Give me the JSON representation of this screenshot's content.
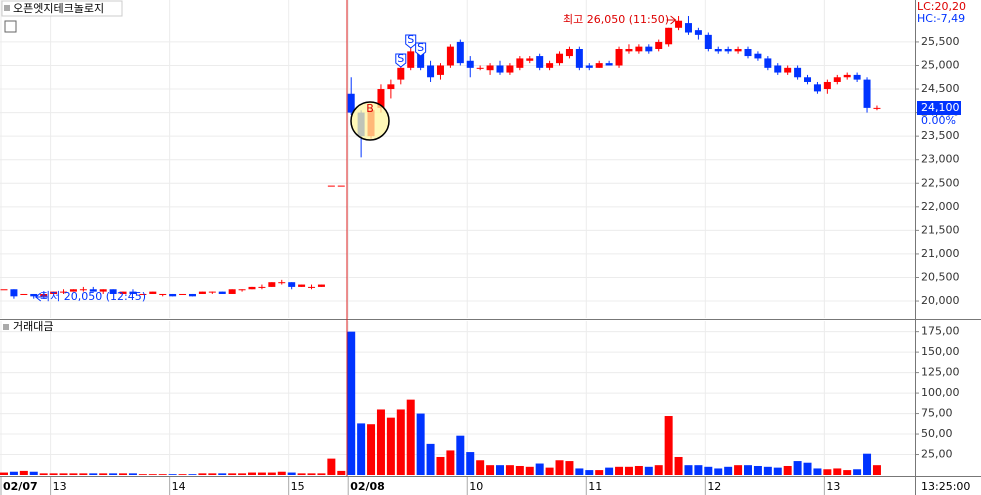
{
  "chart_data": [
    {
      "type": "candlestick",
      "title": "오픈엣지테크놀로지",
      "up_color": "#ff0000",
      "down_color": "#0033ff",
      "open": [
        20250,
        20250,
        20150,
        20150,
        20100,
        20150,
        20200,
        20200,
        20250,
        20250,
        20200,
        20250,
        20150,
        20200,
        20150,
        20150,
        20150,
        20150,
        20150,
        20150,
        20150,
        20200,
        20200,
        20150,
        20250,
        20250,
        20300,
        20300,
        20400,
        20400,
        20300,
        20300,
        20300,
        22450,
        22450,
        24400,
        24000,
        23500,
        24100,
        24500,
        24700,
        24950,
        25300,
        25000,
        24800,
        25000,
        25500,
        25100,
        24950,
        24900,
        25000,
        24850,
        24950,
        25100,
        25200,
        24950,
        25050,
        25200,
        25350,
        25000,
        24950,
        25050,
        25000,
        25300,
        25300,
        25400,
        25350,
        25450,
        25800,
        25900,
        25750,
        25650,
        25350,
        25350,
        25300,
        25350,
        25250,
        25150,
        25000,
        24850,
        24950,
        24750,
        24600,
        24500,
        24650,
        24750,
        24800,
        24700,
        24100
      ],
      "high": [
        20250,
        20250,
        20150,
        20150,
        20150,
        20200,
        20250,
        20250,
        20300,
        20300,
        20250,
        20250,
        20200,
        20250,
        20150,
        20200,
        20150,
        20150,
        20150,
        20150,
        20200,
        20200,
        20200,
        20250,
        20250,
        20300,
        20350,
        20400,
        20450,
        20400,
        20350,
        20350,
        20350,
        22450,
        22450,
        24750,
        24050,
        24100,
        24600,
        24700,
        25000,
        25400,
        25400,
        25100,
        25050,
        25450,
        25550,
        25200,
        25000,
        25050,
        25100,
        25050,
        25200,
        25200,
        25250,
        25100,
        25300,
        25400,
        25400,
        25050,
        25100,
        25100,
        25400,
        25450,
        25450,
        25450,
        25550,
        25800,
        26050,
        26050,
        25800,
        25700,
        25400,
        25400,
        25400,
        25400,
        25300,
        25200,
        25050,
        25000,
        25000,
        24800,
        24650,
        24700,
        24800,
        24850,
        24850,
        24750,
        24150
      ],
      "low": [
        20250,
        20050,
        20150,
        20050,
        20100,
        20150,
        20150,
        20200,
        20200,
        20200,
        20150,
        20150,
        20150,
        20150,
        20150,
        20150,
        20100,
        20100,
        20150,
        20100,
        20150,
        20150,
        20150,
        20150,
        20200,
        20250,
        20250,
        20300,
        20350,
        20250,
        20300,
        20250,
        20300,
        22450,
        22450,
        23950,
        23050,
        23450,
        24000,
        24300,
        24600,
        24900,
        24900,
        24650,
        24700,
        24950,
        25000,
        24750,
        24900,
        24800,
        24800,
        24800,
        24900,
        25050,
        24900,
        24900,
        25000,
        25150,
        24900,
        24900,
        24950,
        25000,
        24950,
        25250,
        25250,
        25250,
        25300,
        25400,
        25750,
        25650,
        25550,
        25300,
        25250,
        25250,
        25250,
        25150,
        25100,
        24900,
        24800,
        24800,
        24700,
        24600,
        24400,
        24400,
        24600,
        24700,
        24650,
        24000,
        24050
      ],
      "close": [
        20250,
        20100,
        20150,
        20100,
        20150,
        20200,
        20200,
        20250,
        20250,
        20200,
        20250,
        20150,
        20200,
        20150,
        20150,
        20200,
        20150,
        20100,
        20150,
        20100,
        20200,
        20200,
        20150,
        20250,
        20250,
        20300,
        20300,
        20400,
        20400,
        20300,
        20350,
        20300,
        20350,
        22450,
        22450,
        24000,
        23500,
        24050,
        24500,
        24600,
        24950,
        25300,
        24950,
        24750,
        25000,
        25400,
        25050,
        24950,
        24950,
        25000,
        24850,
        25000,
        25150,
        25150,
        24950,
        25050,
        25250,
        25350,
        24950,
        24950,
        25050,
        25000,
        25350,
        25350,
        25400,
        25300,
        25500,
        25800,
        25950,
        25700,
        25650,
        25350,
        25300,
        25300,
        25350,
        25200,
        25150,
        24950,
        24850,
        24950,
        24750,
        24650,
        24450,
        24650,
        24750,
        24800,
        24700,
        24100,
        24100
      ],
      "ylim": [
        19640,
        26390
      ],
      "yticks": [
        {
          "value": 20000,
          "label": "20,000"
        },
        {
          "value": 20500,
          "label": "20,500"
        },
        {
          "value": 21000,
          "label": "21,000"
        },
        {
          "value": 21500,
          "label": "21,500"
        },
        {
          "value": 22000,
          "label": "22,000"
        },
        {
          "value": 22500,
          "label": "22,500"
        },
        {
          "value": 23000,
          "label": "23,000"
        },
        {
          "value": 23500,
          "label": "23,500"
        },
        {
          "value": 24000,
          "label": "24,000"
        },
        {
          "value": 24500,
          "label": "24,500"
        },
        {
          "value": 25000,
          "label": "25,000"
        },
        {
          "value": 25500,
          "label": "25,500"
        }
      ],
      "grid": true,
      "high_annotation": "최고 26,050 (11:50)",
      "low_annotation": "최저 20,050 (12:45)",
      "last_price": "24,100",
      "change": "0.00%",
      "lc": "LC:20,20",
      "hc": "HC:-7,49",
      "buy_marker": "B",
      "sell_marker": "S"
    },
    {
      "type": "bar",
      "title": "거래대금",
      "time_label": "13:25:00",
      "categories": [
        "02/07",
        null,
        null,
        null,
        null,
        "13",
        null,
        null,
        null,
        null,
        null,
        null,
        null,
        null,
        null,
        null,
        null,
        "14",
        null,
        null,
        null,
        null,
        null,
        null,
        null,
        null,
        null,
        null,
        null,
        "15",
        null,
        null,
        null,
        null,
        null,
        "02/08",
        null,
        null,
        null,
        null,
        null,
        null,
        null,
        null,
        null,
        null,
        null,
        "10",
        null,
        null,
        null,
        null,
        null,
        null,
        null,
        null,
        null,
        null,
        null,
        "11",
        null,
        null,
        null,
        null,
        null,
        null,
        null,
        null,
        null,
        null,
        null,
        "12",
        null,
        null,
        null,
        null,
        null,
        null,
        null,
        null,
        null,
        null,
        null,
        "13",
        null,
        null,
        null,
        null,
        null
      ],
      "values": [
        3,
        4,
        5,
        4,
        2,
        2,
        2,
        2,
        2,
        2,
        2,
        2,
        2,
        2,
        1,
        1,
        1,
        1,
        1,
        1,
        2,
        2,
        2,
        2,
        2,
        3,
        3,
        3,
        4,
        3,
        2,
        2,
        2,
        20,
        5,
        175,
        63,
        62,
        80,
        70,
        80,
        92,
        75,
        38,
        22,
        30,
        48,
        28,
        18,
        12,
        12,
        12,
        11,
        10,
        14,
        9,
        18,
        17,
        8,
        6,
        6,
        9,
        10,
        10,
        11,
        10,
        12,
        72,
        22,
        12,
        12,
        10,
        8,
        10,
        12,
        12,
        11,
        10,
        9,
        11,
        17,
        15,
        8,
        7,
        8,
        6,
        7,
        26,
        12
      ],
      "ylim": [
        0,
        188
      ],
      "yticks": [
        {
          "value": 25,
          "label": "25,00"
        },
        {
          "value": 50,
          "label": "50,00"
        },
        {
          "value": 75,
          "label": "75,00"
        },
        {
          "value": 100,
          "label": "100,00"
        },
        {
          "value": 125,
          "label": "125,00"
        },
        {
          "value": 150,
          "label": "150,00"
        },
        {
          "value": 175,
          "label": "175,00"
        }
      ],
      "grid": true
    }
  ]
}
